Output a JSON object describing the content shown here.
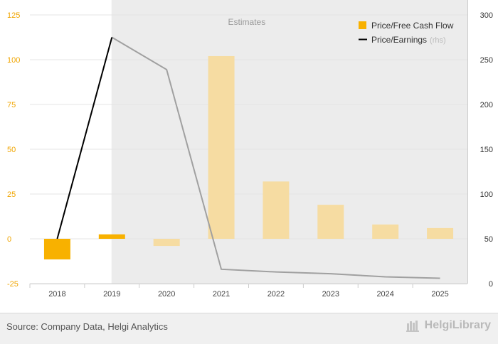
{
  "chart_data": {
    "type": "bar",
    "categories": [
      "2018",
      "2019",
      "2020",
      "2021",
      "2022",
      "2023",
      "2024",
      "2025"
    ],
    "series": [
      {
        "name": "Price/Free Cash Flow",
        "type": "bar",
        "axis": "left",
        "color": "#f8b100",
        "estimate_color": "#f6dca2",
        "values": [
          -11.5,
          2.5,
          -4,
          102,
          32,
          19,
          8,
          6
        ]
      },
      {
        "name": "Price/Earnings",
        "legend_suffix": "(rhs)",
        "type": "line",
        "axis": "right",
        "color": "#000000",
        "estimate_color": "#a0a0a0",
        "values": [
          50,
          275,
          239,
          16,
          13,
          11,
          7.5,
          6
        ]
      }
    ],
    "estimates_from_index": 2,
    "estimates_label": "Estimates",
    "y_left": {
      "min": -25,
      "max": 125,
      "ticks": [
        -25,
        0,
        25,
        50,
        75,
        100,
        125
      ]
    },
    "y_right": {
      "min": 0,
      "max": 300,
      "ticks": [
        0,
        50,
        100,
        150,
        200,
        250,
        300
      ]
    },
    "legend_position": "top-right"
  },
  "footer": {
    "source": "Source: Company Data, Helgi Analytics",
    "brand": "HelgiLibrary"
  }
}
